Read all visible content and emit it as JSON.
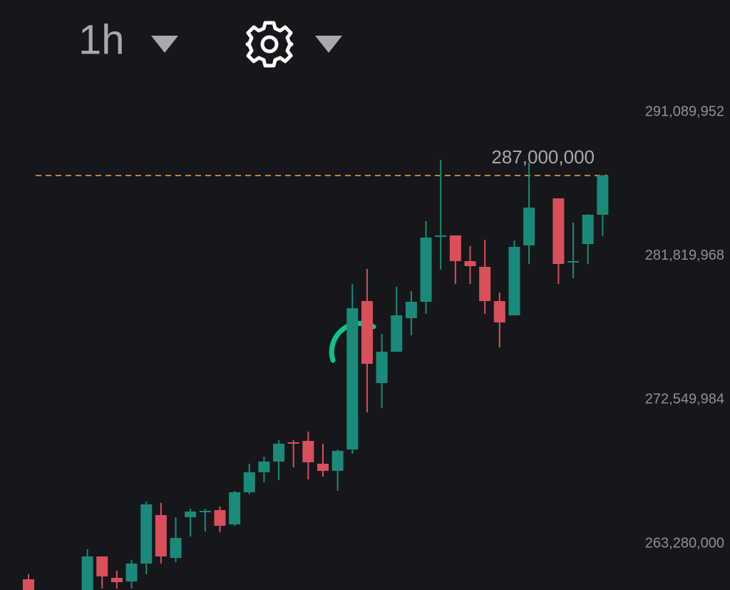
{
  "toolbar": {
    "interval": "1h"
  },
  "chart_data": {
    "type": "candlestick",
    "open": [
      260987000,
      null,
      null,
      null,
      260160000,
      262458000,
      261079000,
      260849000,
      261998000,
      265124000,
      262366000,
      264986000,
      265307000,
      265445000,
      264526000,
      266594000,
      267881000,
      268571000,
      269811000,
      269903000,
      268433000,
      267973000,
      269352000,
      278911000,
      273626000,
      275648000,
      277808000,
      278865000,
      283048000,
      283140000,
      281485000,
      281117000,
      278911000,
      277992000,
      282496000,
      null,
      285529000,
      281393000,
      282588000,
      284472000
    ],
    "high": [
      261309000,
      null,
      null,
      null,
      262918000,
      262458000,
      261539000,
      262228000,
      265997000,
      265905000,
      264986000,
      265537000,
      265537000,
      265675000,
      266686000,
      268433000,
      268892000,
      269949000,
      269949000,
      270501000,
      269720000,
      269352000,
      280014000,
      280979000,
      276797000,
      279830000,
      279555000,
      284059000,
      288011000,
      283140000,
      282450000,
      282864000,
      279463000,
      282818000,
      287827000,
      null,
      285529000,
      283967000,
      284518000,
      287046000
    ],
    "low": [
      259930000,
      null,
      null,
      null,
      259930000,
      260390000,
      260390000,
      260390000,
      261309000,
      261998000,
      262090000,
      263745000,
      264067000,
      264021000,
      264434000,
      266456000,
      267238000,
      267376000,
      268203000,
      267422000,
      267605000,
      266686000,
      269076000,
      271742000,
      272017000,
      275648000,
      276705000,
      278084000,
      280933000,
      280014000,
      280014000,
      278084000,
      275924000,
      277992000,
      281301000,
      null,
      280014000,
      280382000,
      281301000,
      283094000
    ],
    "close": [
      260160000,
      null,
      null,
      null,
      262458000,
      261171000,
      260803000,
      261998000,
      265813000,
      262458000,
      263653000,
      265353000,
      265399000,
      264434000,
      266594000,
      267881000,
      268571000,
      269720000,
      269720000,
      268525000,
      267973000,
      269260000,
      278452000,
      274867000,
      275648000,
      277992000,
      278865000,
      283002000,
      283140000,
      281485000,
      281163000,
      278911000,
      277533000,
      282404000,
      284932000,
      null,
      281301000,
      281485000,
      284472000,
      287000000
    ],
    "up_color": "#1a8a7a",
    "down_color": "#d9505a",
    "ylim": [
      260297000,
      298306000
    ],
    "yticks": [
      {
        "value": 263280000,
        "label": "263,280,000"
      },
      {
        "value": 272549984,
        "label": "272,549,984"
      },
      {
        "value": 281819968,
        "label": "281,819,968"
      },
      {
        "value": 291089952,
        "label": "291,089,952"
      }
    ],
    "price_line": {
      "value": 287000000,
      "label": "287,000,000",
      "color": "#b8834a"
    }
  }
}
